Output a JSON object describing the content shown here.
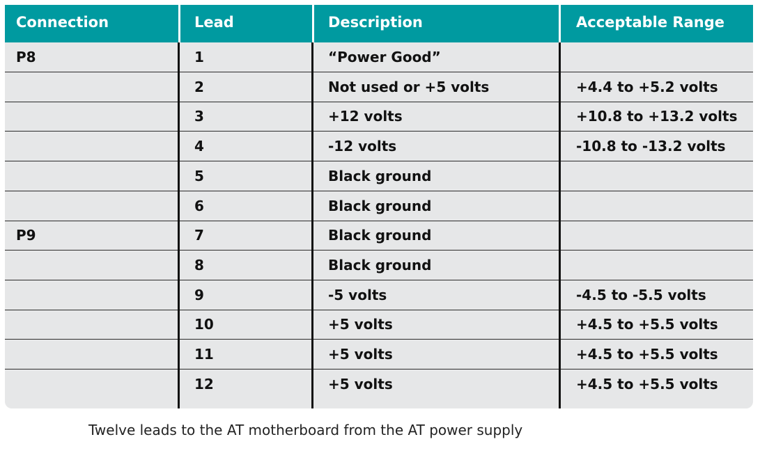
{
  "table": {
    "headers": [
      "Connection",
      "Lead",
      "Description",
      "Acceptable Range"
    ],
    "rows": [
      {
        "connection": "P8",
        "lead": "1",
        "description": "“Power Good”",
        "range": ""
      },
      {
        "connection": "",
        "lead": "2",
        "description": "Not used or +5 volts",
        "range": "+4.4 to +5.2 volts"
      },
      {
        "connection": "",
        "lead": "3",
        "description": "+12 volts",
        "range": "+10.8 to +13.2 volts"
      },
      {
        "connection": "",
        "lead": "4",
        "description": "-12 volts",
        "range": "-10.8 to -13.2 volts"
      },
      {
        "connection": "",
        "lead": "5",
        "description": "Black ground",
        "range": ""
      },
      {
        "connection": "",
        "lead": "6",
        "description": "Black ground",
        "range": ""
      },
      {
        "connection": "P9",
        "lead": "7",
        "description": "Black ground",
        "range": ""
      },
      {
        "connection": "",
        "lead": "8",
        "description": "Black ground",
        "range": ""
      },
      {
        "connection": "",
        "lead": "9",
        "description": "-5 volts",
        "range": "-4.5 to -5.5 volts"
      },
      {
        "connection": "",
        "lead": "10",
        "description": "+5 volts",
        "range": "+4.5 to +5.5 volts"
      },
      {
        "connection": "",
        "lead": "11",
        "description": "+5 volts",
        "range": "+4.5 to +5.5 volts"
      },
      {
        "connection": "",
        "lead": "12",
        "description": "+5 volts",
        "range": "+4.5 to +5.5 volts"
      }
    ]
  },
  "caption": "Twelve leads to the AT motherboard from the AT power supply",
  "colors": {
    "header_bg": "#009aa0",
    "header_text": "#ffffff",
    "body_bg": "#e6e7e8",
    "rule": "#111111"
  }
}
